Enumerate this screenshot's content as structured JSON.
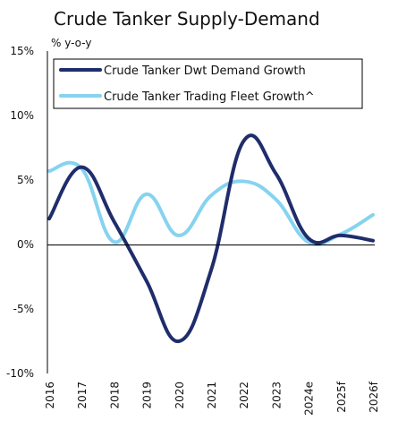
{
  "chart_data": {
    "type": "line",
    "title": "Crude Tanker Supply-Demand",
    "unit_label": "% y-o-y",
    "xlabel": "",
    "ylabel": "",
    "ylim": [
      -10,
      15
    ],
    "ytick_values": [
      -10,
      -5,
      0,
      5,
      10,
      15
    ],
    "ytick_labels": [
      "-10%",
      "-5%",
      "0%",
      "5%",
      "10%",
      "15%"
    ],
    "categories": [
      "2016",
      "2017",
      "2018",
      "2019",
      "2020",
      "2021",
      "2022",
      "2023",
      "2024e",
      "2025f",
      "2026f"
    ],
    "grid": false,
    "legend_position": "top",
    "series": [
      {
        "name": "Crude Tanker Dwt Demand Growth",
        "color": "#1f2d6b",
        "values": [
          2.0,
          6.0,
          1.8,
          -2.8,
          -7.5,
          -2.0,
          8.0,
          5.5,
          0.5,
          0.7,
          0.3
        ]
      },
      {
        "name": "Crude Tanker Trading Fleet Growth^",
        "color": "#86d3f0",
        "values": [
          5.7,
          5.9,
          0.2,
          3.9,
          0.7,
          3.8,
          4.9,
          3.5,
          0.2,
          0.8,
          2.3
        ]
      }
    ]
  }
}
